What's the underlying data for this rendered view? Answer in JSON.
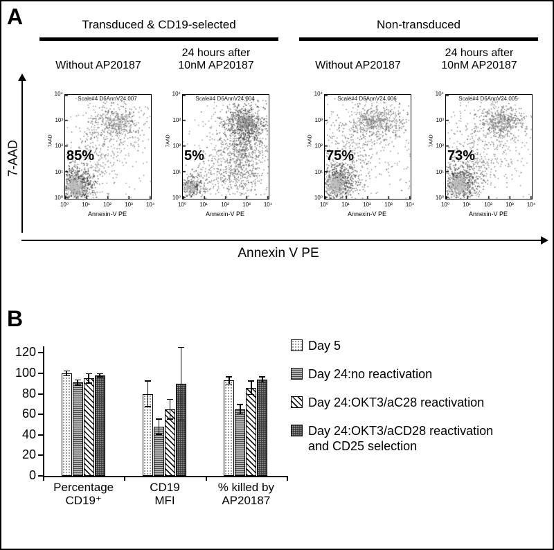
{
  "panelA": {
    "label": "A",
    "groups": [
      {
        "title": "Transduced & CD19-selected"
      },
      {
        "title": "Non-transduced"
      }
    ],
    "conditions": [
      {
        "lines": [
          "Without AP20187"
        ]
      },
      {
        "lines": [
          "24 hours after",
          "10nM AP20187"
        ]
      },
      {
        "lines": [
          "Without AP20187"
        ]
      },
      {
        "lines": [
          "24 hours after",
          "10nM AP20187"
        ]
      }
    ],
    "y_axis_label": "7-AAD",
    "x_axis_label": "Annexin V PE"
  },
  "panelB": {
    "label": "B"
  },
  "chart_data": [
    {
      "type": "bar",
      "title": "",
      "categories": [
        "Percentage CD19⁺",
        "CD19 MFI",
        "% killed by AP20187"
      ],
      "category_label_lines": [
        [
          "Percentage",
          "CD19⁺"
        ],
        [
          "CD19",
          "MFI"
        ],
        [
          "% killed by",
          "AP20187"
        ]
      ],
      "series": [
        {
          "name": "Day 5",
          "pattern": "dots-light",
          "values": [
            100,
            80,
            93
          ],
          "errors": [
            2,
            12,
            3
          ]
        },
        {
          "name": "Day 24:no reactivation",
          "pattern": "hlines",
          "values": [
            91,
            48,
            65
          ],
          "errors": [
            2,
            7,
            4
          ]
        },
        {
          "name": "Day 24:OKT3/aC28 reactivation",
          "pattern": "diag",
          "values": [
            95,
            65,
            86
          ],
          "errors": [
            4,
            9,
            6
          ]
        },
        {
          "name": "Day 24:OKT3/aCD28 reactivation and CD25 selection",
          "pattern": "dots-dark",
          "values": [
            98,
            90,
            94
          ],
          "errors": [
            1,
            35,
            2
          ]
        }
      ],
      "ylim": [
        0,
        120
      ],
      "yticks": [
        0,
        20,
        40,
        60,
        80,
        100,
        120
      ],
      "legend_position": "right",
      "error_bars": true
    },
    {
      "type": "scatter",
      "subtype": "flow-cytometry-density",
      "xlabel": "Annexin-V PE",
      "ylabel": "7AAD",
      "xticks": [
        "10⁰",
        "10¹",
        "10²",
        "10³",
        "10⁴"
      ],
      "yticks": [
        "10⁰",
        "10¹",
        "10²",
        "10³",
        "10⁴"
      ],
      "plots": [
        {
          "group": "Transduced & CD19-selected",
          "condition": "Without AP20187",
          "scale_label": "Scale#4 D6AnnV24.007",
          "percent_label": "85%",
          "percent": 85,
          "clusters": [
            {
              "x": 0.45,
              "y": 0.5,
              "sx": 0.3,
              "sy": 0.28,
              "n": 220,
              "color": "#777"
            },
            {
              "x": 0.6,
              "y": 0.74,
              "sx": 0.16,
              "sy": 0.1,
              "n": 320,
              "color": "#555"
            },
            {
              "x": 0.6,
              "y": 0.74,
              "sx": 0.08,
              "sy": 0.05,
              "n": 160,
              "color": "#999"
            },
            {
              "x": 0.3,
              "y": 0.35,
              "sx": 0.18,
              "sy": 0.18,
              "n": 200,
              "color": "#555"
            },
            {
              "x": 0.13,
              "y": 0.14,
              "sx": 0.1,
              "sy": 0.09,
              "n": 600,
              "color": "#333"
            },
            {
              "x": 0.115,
              "y": 0.125,
              "sx": 0.05,
              "sy": 0.045,
              "n": 450,
              "color": "#c0c0c0"
            }
          ]
        },
        {
          "group": "Transduced & CD19-selected",
          "condition": "24 hours after 10nM AP20187",
          "scale_label": "Scale#4 D6AnnV24.004",
          "percent_label": "5%",
          "percent": 5,
          "clusters": [
            {
              "x": 0.5,
              "y": 0.5,
              "sx": 0.3,
              "sy": 0.28,
              "n": 200,
              "color": "#777"
            },
            {
              "x": 0.7,
              "y": 0.45,
              "sx": 0.14,
              "sy": 0.22,
              "n": 700,
              "color": "#555"
            },
            {
              "x": 0.72,
              "y": 0.72,
              "sx": 0.12,
              "sy": 0.1,
              "n": 500,
              "color": "#333"
            },
            {
              "x": 0.73,
              "y": 0.74,
              "sx": 0.06,
              "sy": 0.05,
              "n": 220,
              "color": "#999"
            },
            {
              "x": 0.4,
              "y": 0.25,
              "sx": 0.18,
              "sy": 0.12,
              "n": 150,
              "color": "#666"
            },
            {
              "x": 0.1,
              "y": 0.12,
              "sx": 0.07,
              "sy": 0.06,
              "n": 220,
              "color": "#333"
            },
            {
              "x": 0.09,
              "y": 0.11,
              "sx": 0.035,
              "sy": 0.03,
              "n": 130,
              "color": "#b5b5b5"
            }
          ]
        },
        {
          "group": "Non-transduced",
          "condition": "Without AP20187",
          "scale_label": "Scale#4 D6AnnV24.006",
          "percent_label": "75%",
          "percent": 75,
          "clusters": [
            {
              "x": 0.5,
              "y": 0.5,
              "sx": 0.32,
              "sy": 0.28,
              "n": 260,
              "color": "#777"
            },
            {
              "x": 0.6,
              "y": 0.74,
              "sx": 0.18,
              "sy": 0.09,
              "n": 380,
              "color": "#555"
            },
            {
              "x": 0.57,
              "y": 0.75,
              "sx": 0.09,
              "sy": 0.05,
              "n": 180,
              "color": "#999"
            },
            {
              "x": 0.3,
              "y": 0.4,
              "sx": 0.2,
              "sy": 0.2,
              "n": 220,
              "color": "#555"
            },
            {
              "x": 0.14,
              "y": 0.17,
              "sx": 0.11,
              "sy": 0.1,
              "n": 550,
              "color": "#333"
            },
            {
              "x": 0.12,
              "y": 0.14,
              "sx": 0.05,
              "sy": 0.05,
              "n": 400,
              "color": "#c0c0c0"
            }
          ]
        },
        {
          "group": "Non-transduced",
          "condition": "24 hours after 10nM AP20187",
          "scale_label": "Scale#4 D6AnnV24.005",
          "percent_label": "73%",
          "percent": 73,
          "clusters": [
            {
              "x": 0.5,
              "y": 0.5,
              "sx": 0.32,
              "sy": 0.28,
              "n": 260,
              "color": "#777"
            },
            {
              "x": 0.64,
              "y": 0.74,
              "sx": 0.16,
              "sy": 0.09,
              "n": 360,
              "color": "#555"
            },
            {
              "x": 0.63,
              "y": 0.75,
              "sx": 0.08,
              "sy": 0.05,
              "n": 170,
              "color": "#999"
            },
            {
              "x": 0.32,
              "y": 0.38,
              "sx": 0.2,
              "sy": 0.18,
              "n": 220,
              "color": "#555"
            },
            {
              "x": 0.16,
              "y": 0.16,
              "sx": 0.11,
              "sy": 0.09,
              "n": 550,
              "color": "#333"
            },
            {
              "x": 0.14,
              "y": 0.14,
              "sx": 0.05,
              "sy": 0.045,
              "n": 400,
              "color": "#c0c0c0"
            }
          ]
        }
      ]
    }
  ]
}
